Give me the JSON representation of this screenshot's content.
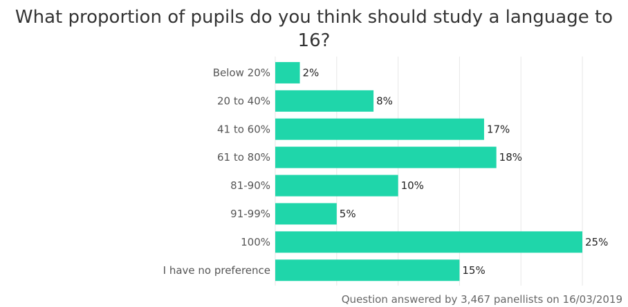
{
  "chart_data": {
    "type": "bar",
    "orientation": "horizontal",
    "title": "What proportion of pupils do you think should study a language to 16?",
    "categories": [
      "Below 20%",
      "20 to 40%",
      "41 to 60%",
      "61 to 80%",
      "81-90%",
      "91-99%",
      "100%",
      "I have no preference"
    ],
    "values": [
      2,
      8,
      17,
      18,
      10,
      5,
      25,
      15
    ],
    "data_labels": [
      "2%",
      "8%",
      "17%",
      "18%",
      "10%",
      "5%",
      "25%",
      "15%"
    ],
    "xlim": [
      0,
      25
    ],
    "grid": true,
    "bar_color": "#1fd6aa"
  },
  "footnote": "Question answered by 3,467 panellists on 16/03/2019"
}
